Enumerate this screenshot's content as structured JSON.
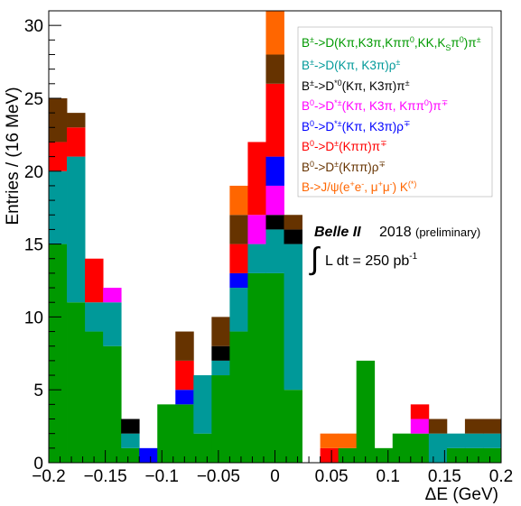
{
  "chart_data": {
    "type": "bar",
    "stacked": true,
    "xlabel": "ΔE (GeV)",
    "ylabel": "Entries / (16 MeV)",
    "xlim": [
      -0.2,
      0.2
    ],
    "ylim": [
      0,
      31
    ],
    "bin_width": 0.016,
    "x_ticks": [
      {
        "value": -0.2,
        "label": "−0.2"
      },
      {
        "value": -0.15,
        "label": "−0.15"
      },
      {
        "value": -0.1,
        "label": "−0.1"
      },
      {
        "value": -0.05,
        "label": "−0.05"
      },
      {
        "value": 0,
        "label": "0"
      },
      {
        "value": 0.05,
        "label": "0.05"
      },
      {
        "value": 0.1,
        "label": "0.1"
      },
      {
        "value": 0.15,
        "label": "0.15"
      },
      {
        "value": 0.2,
        "label": "0.2"
      }
    ],
    "y_ticks": [
      {
        "value": 0,
        "label": "0"
      },
      {
        "value": 5,
        "label": "5"
      },
      {
        "value": 10,
        "label": "10"
      },
      {
        "value": 15,
        "label": "15"
      },
      {
        "value": 20,
        "label": "20"
      },
      {
        "value": 25,
        "label": "25"
      },
      {
        "value": 30,
        "label": "30"
      }
    ],
    "bin_low_edges": [
      -0.2,
      -0.184,
      -0.168,
      -0.152,
      -0.136,
      -0.12,
      -0.104,
      -0.088,
      -0.072,
      -0.056,
      -0.04,
      -0.024,
      -0.008,
      0.008,
      0.024,
      0.04,
      0.056,
      0.072,
      0.088,
      0.104,
      0.12,
      0.136,
      0.152,
      0.168,
      0.184
    ],
    "series": [
      {
        "name": "B±->D(Kπ,K3π,Kππ0,KK,KSπ0)π±",
        "color": "#009900",
        "values": [
          15,
          11,
          9,
          8,
          1,
          0,
          4,
          4,
          2,
          6,
          9,
          13,
          13,
          5,
          0,
          0,
          1,
          7,
          1,
          2,
          2,
          0,
          1,
          1,
          1
        ]
      },
      {
        "name": "B±->D(Kπ, K3π)ρ±",
        "color": "#009999",
        "values": [
          5,
          10,
          2,
          3,
          1,
          0,
          0,
          0,
          4,
          1,
          3,
          2,
          3,
          10,
          0,
          0,
          0,
          0,
          0,
          0,
          0,
          2,
          1,
          1,
          1
        ]
      },
      {
        "name": "B±->D*0(Kπ, K3π)π±",
        "color": "#000000",
        "values": [
          0,
          0,
          0,
          0,
          1,
          0,
          0,
          0,
          0,
          1,
          0,
          0,
          1,
          1,
          0,
          0,
          0,
          0,
          0,
          0,
          0,
          0,
          0,
          0,
          0
        ]
      },
      {
        "name": "B0->D*±(Kπ, K3π, Kππ0)π∓",
        "color": "#ff00ff",
        "values": [
          0,
          0,
          0,
          1,
          0,
          0,
          0,
          0,
          0,
          0,
          0,
          2,
          2,
          0,
          0,
          0,
          0,
          0,
          0,
          0,
          1,
          0,
          0,
          0,
          0
        ]
      },
      {
        "name": "B0->D*±(Kπ, K3π)ρ∓",
        "color": "#0000ff",
        "values": [
          0,
          0,
          0,
          0,
          0,
          1,
          0,
          1,
          0,
          0,
          1,
          0,
          2,
          0,
          0,
          0,
          0,
          0,
          0,
          0,
          0,
          0,
          0,
          0,
          0
        ]
      },
      {
        "name": "B0->D±(Kππ)π∓",
        "color": "#ff0000",
        "values": [
          2,
          2,
          3,
          0,
          0,
          0,
          0,
          2,
          0,
          0,
          2,
          5,
          5,
          0,
          0,
          1,
          0,
          0,
          0,
          0,
          1,
          0,
          0,
          0,
          0
        ]
      },
      {
        "name": "B0->D±(Kππ)ρ∓",
        "color": "#663300",
        "values": [
          3,
          1,
          0,
          0,
          0,
          0,
          0,
          2,
          0,
          2,
          2,
          0,
          2,
          1,
          0,
          0,
          0,
          0,
          0,
          0,
          0,
          1,
          0,
          1,
          1
        ]
      },
      {
        "name": "B->J/ψ(e+e-, μ+μ-) K(*)",
        "color": "#ff6600",
        "values": [
          0,
          0,
          0,
          0,
          0,
          0,
          0,
          0,
          0,
          0,
          2,
          0,
          3,
          0,
          0,
          1,
          1,
          0,
          0,
          0,
          0,
          0,
          0,
          0,
          0
        ]
      }
    ],
    "legend_position": "top-right",
    "annotations": {
      "experiment": "Belle II",
      "year": "2018",
      "status": "(preliminary)",
      "lumi_prefix": "L dt  = 250 pb",
      "lumi_exp": "-1"
    },
    "grid": false
  }
}
